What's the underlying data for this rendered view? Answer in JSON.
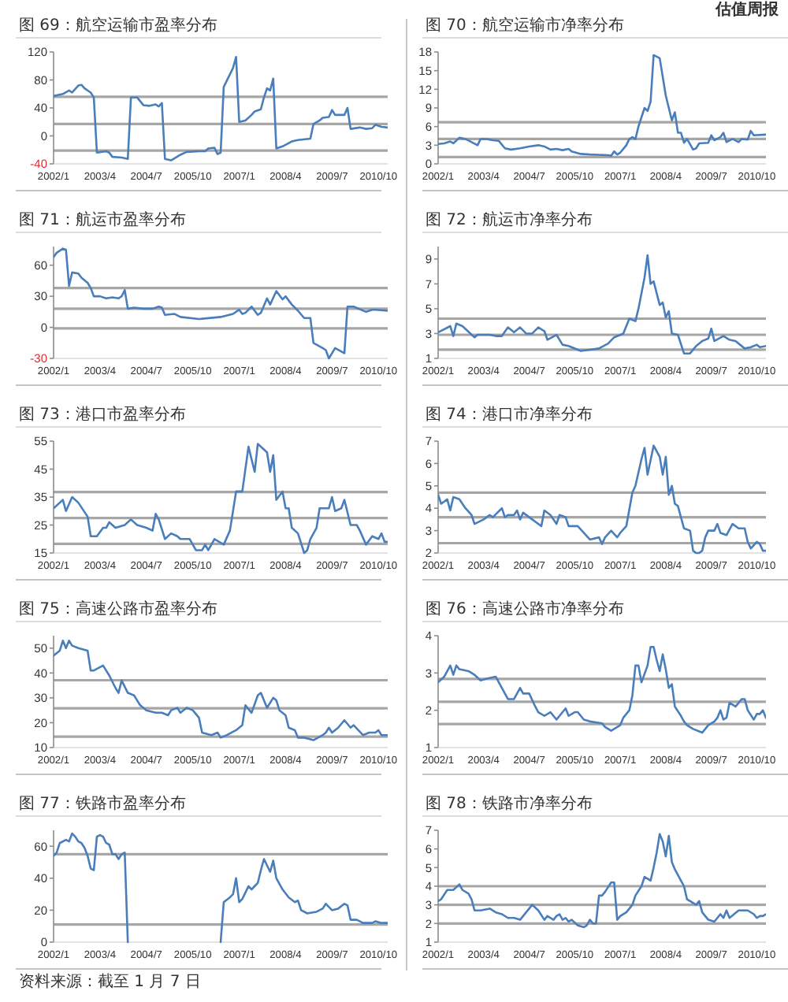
{
  "chart_data": [
    {
      "type": "line",
      "title": "图 69：航空运输市盈率分布",
      "color": "#4a7ebb",
      "xlim": [
        "2002-01",
        "2011-01"
      ],
      "ylim": [
        -40,
        120
      ],
      "yticks": [
        -40,
        0,
        40,
        80,
        120
      ],
      "xticks": [
        {
          "value": "2002-01",
          "label": "2002/1"
        },
        {
          "value": "2003-04",
          "label": "2003/4"
        },
        {
          "value": "2004-07",
          "label": "2004/7"
        },
        {
          "value": "2005-10",
          "label": "2005/10"
        },
        {
          "value": "2007-01",
          "label": "2007/1"
        },
        {
          "value": "2008-04",
          "label": "2008/4"
        },
        {
          "value": "2009-07",
          "label": "2009/7"
        },
        {
          "value": "2010-10",
          "label": "2010/10"
        }
      ],
      "ref_lines": [
        {
          "axis": "y",
          "value": 56,
          "color": "#a6a6a6"
        },
        {
          "axis": "y",
          "value": 17,
          "color": "#a6a6a6"
        },
        {
          "axis": "y",
          "value": -21,
          "color": "#a6a6a6"
        }
      ],
      "x": [
        "2002-01",
        "2002-04",
        "2002-06",
        "2002-07",
        "2002-09",
        "2002-10",
        "2002-11",
        "2003-01",
        "2003-02",
        "2003-03",
        "2003-06",
        "2003-07",
        "2003-08",
        "2003-11",
        "2004-01",
        "2004-02",
        "2004-04",
        "2004-06",
        "2004-08",
        "2004-10",
        "2004-11",
        "2004-12",
        "2005-01",
        "2005-03",
        "2005-06",
        "2005-08",
        "2005-12",
        "2006-02",
        "2006-03",
        "2006-05",
        "2006-06",
        "2006-07",
        "2006-08",
        "2006-10",
        "2006-11",
        "2006-12",
        "2007-01",
        "2007-03",
        "2007-05",
        "2007-06",
        "2007-08",
        "2007-09",
        "2007-10",
        "2007-11",
        "2007-12",
        "2008-01",
        "2008-03",
        "2008-06",
        "2008-08",
        "2008-12",
        "2009-01",
        "2009-03",
        "2009-04",
        "2009-06",
        "2009-07",
        "2009-08",
        "2009-11",
        "2009-12",
        "2010-01",
        "2010-04",
        "2010-06",
        "2010-08",
        "2010-09",
        "2010-11",
        "2011-01"
      ],
      "values": [
        57,
        60,
        65,
        62,
        72,
        73,
        68,
        62,
        55,
        -24,
        -22,
        -24,
        -30,
        -31,
        -33,
        55,
        55,
        44,
        43,
        45,
        42,
        47,
        -33,
        -35,
        -27,
        -23,
        -22,
        -22,
        -18,
        -17,
        -26,
        -24,
        70,
        88,
        97,
        113,
        20,
        22,
        30,
        35,
        38,
        55,
        68,
        65,
        82,
        -18,
        -15,
        -8,
        -6,
        -4,
        17,
        22,
        26,
        27,
        37,
        30,
        30,
        40,
        10,
        12,
        10,
        11,
        16,
        13,
        12
      ]
    },
    {
      "type": "line",
      "title": "图 70：航空运输市净率分布",
      "annotations": [
        "估值周报"
      ],
      "color": "#4a7ebb",
      "xlim": [
        "2002-01",
        "2011-01"
      ],
      "ylim": [
        0,
        18
      ],
      "yticks": [
        0,
        3,
        6,
        9,
        12,
        15,
        18
      ],
      "xticks": [
        {
          "value": "2002-01",
          "label": "2002/1"
        },
        {
          "value": "2003-04",
          "label": "2003/4"
        },
        {
          "value": "2004-07",
          "label": "2004/7"
        },
        {
          "value": "2005-10",
          "label": "2005/10"
        },
        {
          "value": "2007-01",
          "label": "2007/1"
        },
        {
          "value": "2008-04",
          "label": "2008/4"
        },
        {
          "value": "2009-07",
          "label": "2009/7"
        },
        {
          "value": "2010-10",
          "label": "2010/10"
        }
      ],
      "ref_lines": [
        {
          "axis": "y",
          "value": 6.7,
          "color": "#a6a6a6"
        },
        {
          "axis": "y",
          "value": 4.0,
          "color": "#a6a6a6"
        },
        {
          "axis": "y",
          "value": 1.1,
          "color": "#a6a6a6"
        }
      ],
      "x": [
        "2002-01",
        "2002-03",
        "2002-05",
        "2002-06",
        "2002-08",
        "2002-10",
        "2002-12",
        "2003-02",
        "2003-03",
        "2003-05",
        "2003-07",
        "2003-09",
        "2003-11",
        "2004-01",
        "2004-04",
        "2004-07",
        "2004-10",
        "2004-12",
        "2005-02",
        "2005-04",
        "2005-06",
        "2005-08",
        "2005-09",
        "2005-12",
        "2006-03",
        "2006-09",
        "2006-10",
        "2006-11",
        "2006-12",
        "2007-01",
        "2007-03",
        "2007-04",
        "2007-05",
        "2007-06",
        "2007-07",
        "2007-09",
        "2007-10",
        "2007-11",
        "2007-12",
        "2008-02",
        "2008-03",
        "2008-04",
        "2008-06",
        "2008-07",
        "2008-08",
        "2008-09",
        "2008-10",
        "2008-11",
        "2009-01",
        "2009-02",
        "2009-03",
        "2009-06",
        "2009-07",
        "2009-08",
        "2009-10",
        "2009-11",
        "2009-12",
        "2010-02",
        "2010-04",
        "2010-05",
        "2010-07",
        "2010-08",
        "2010-09",
        "2011-01"
      ],
      "values": [
        3.2,
        3.3,
        3.6,
        3.3,
        4.2,
        4.0,
        3.5,
        3.0,
        4.0,
        4.0,
        3.8,
        3.7,
        2.5,
        2.3,
        2.5,
        2.8,
        3.0,
        2.8,
        2.3,
        2.4,
        2.2,
        2.4,
        2.0,
        1.6,
        1.5,
        1.4,
        1.3,
        2.0,
        1.5,
        1.8,
        3.0,
        4.0,
        4.3,
        4.0,
        6,
        9,
        8.5,
        10,
        17.5,
        17,
        14,
        11,
        7,
        8.3,
        5,
        5,
        3.4,
        4,
        2.3,
        2.5,
        3.3,
        3.4,
        4.6,
        3.8,
        4.3,
        5.0,
        3.5,
        4.0,
        3.5,
        4.0,
        3.9,
        5.3,
        4.6,
        4.7
      ]
    },
    {
      "type": "line",
      "title": "图 71：航运市盈率分布",
      "color": "#4a7ebb",
      "xlim": [
        "2002-01",
        "2011-01"
      ],
      "ylim": [
        -30,
        78
      ],
      "yticks": [
        -30,
        0,
        30,
        60
      ],
      "xticks": [
        {
          "value": "2002-01",
          "label": "2002/1"
        },
        {
          "value": "2003-04",
          "label": "2003/4"
        },
        {
          "value": "2004-07",
          "label": "2004/7"
        },
        {
          "value": "2005-10",
          "label": "2005/10"
        },
        {
          "value": "2007-01",
          "label": "2007/1"
        },
        {
          "value": "2008-04",
          "label": "2008/4"
        },
        {
          "value": "2009-07",
          "label": "2009/7"
        },
        {
          "value": "2010-10",
          "label": "2010/10"
        }
      ],
      "ref_lines": [
        {
          "axis": "y",
          "value": 38,
          "color": "#a6a6a6"
        },
        {
          "axis": "y",
          "value": 18,
          "color": "#a6a6a6"
        },
        {
          "axis": "y",
          "value": -1,
          "color": "#a6a6a6"
        }
      ],
      "x": [
        "2002-01",
        "2002-02",
        "2002-04",
        "2002-05",
        "2002-06",
        "2002-07",
        "2002-09",
        "2002-10",
        "2002-12",
        "2003-01",
        "2003-02",
        "2003-04",
        "2003-06",
        "2003-08",
        "2003-10",
        "2003-11",
        "2003-12",
        "2004-01",
        "2004-03",
        "2004-06",
        "2004-09",
        "2004-11",
        "2004-12",
        "2005-01",
        "2005-04",
        "2005-06",
        "2005-12",
        "2006-07",
        "2006-11",
        "2007-01",
        "2007-02",
        "2007-03",
        "2007-05",
        "2007-07",
        "2007-08",
        "2007-10",
        "2007-11",
        "2008-01",
        "2008-03",
        "2008-04",
        "2008-06",
        "2008-08",
        "2008-10",
        "2008-12",
        "2009-01",
        "2009-04",
        "2009-05",
        "2009-06",
        "2009-08",
        "2009-11",
        "2009-12",
        "2010-02",
        "2010-06",
        "2010-08",
        "2010-09",
        "2011-01"
      ],
      "values": [
        68,
        72,
        76,
        75,
        40,
        53,
        52,
        48,
        43,
        38,
        30,
        30,
        28,
        29,
        28,
        30,
        36,
        18,
        19,
        18,
        18,
        20,
        19,
        12,
        13,
        10,
        8,
        10,
        13,
        17,
        13,
        14,
        20,
        12,
        14,
        28,
        22,
        35,
        27,
        30,
        22,
        16,
        9,
        9,
        -15,
        -20,
        -22,
        -30,
        -20,
        -25,
        20,
        20,
        15,
        17,
        17,
        16
      ]
    },
    {
      "type": "line",
      "title": "图 72：航运市净率分布",
      "color": "#4a7ebb",
      "xlim": [
        "2002-01",
        "2011-01"
      ],
      "ylim": [
        1,
        10
      ],
      "yticks": [
        1,
        3,
        5,
        7,
        9
      ],
      "xticks": [
        {
          "value": "2002-01",
          "label": "2002/1"
        },
        {
          "value": "2003-04",
          "label": "2003/4"
        },
        {
          "value": "2004-07",
          "label": "2004/7"
        },
        {
          "value": "2005-10",
          "label": "2005/10"
        },
        {
          "value": "2007-01",
          "label": "2007/1"
        },
        {
          "value": "2008-04",
          "label": "2008/4"
        },
        {
          "value": "2009-07",
          "label": "2009/7"
        },
        {
          "value": "2010-10",
          "label": "2010/10"
        }
      ],
      "ref_lines": [
        {
          "axis": "y",
          "value": 4.2,
          "color": "#a6a6a6"
        },
        {
          "axis": "y",
          "value": 2.9,
          "color": "#a6a6a6"
        },
        {
          "axis": "y",
          "value": 1.7,
          "color": "#a6a6a6"
        }
      ],
      "x": [
        "2002-01",
        "2002-05",
        "2002-06",
        "2002-07",
        "2002-09",
        "2003-01",
        "2003-02",
        "2003-06",
        "2003-08",
        "2003-10",
        "2003-12",
        "2004-02",
        "2004-04",
        "2004-06",
        "2004-08",
        "2004-10",
        "2004-12",
        "2005-01",
        "2005-04",
        "2005-06",
        "2005-08",
        "2005-12",
        "2006-03",
        "2006-06",
        "2006-09",
        "2006-11",
        "2007-02",
        "2007-04",
        "2007-06",
        "2007-07",
        "2007-09",
        "2007-10",
        "2007-11",
        "2007-12",
        "2008-02",
        "2008-03",
        "2008-04",
        "2008-05",
        "2008-06",
        "2008-08",
        "2008-10",
        "2008-12",
        "2009-02",
        "2009-04",
        "2009-06",
        "2009-07",
        "2009-08",
        "2009-11",
        "2010-01",
        "2010-03",
        "2010-06",
        "2010-08",
        "2010-10",
        "2010-11",
        "2011-01"
      ],
      "values": [
        3.1,
        3.6,
        2.8,
        3.8,
        3.6,
        2.7,
        2.9,
        2.9,
        2.8,
        2.8,
        3.5,
        3.1,
        3.5,
        3.0,
        3.0,
        3.5,
        3.2,
        2.5,
        2.9,
        2.1,
        2.0,
        1.6,
        1.7,
        1.8,
        2.2,
        2.7,
        3.0,
        4.2,
        4.0,
        5.0,
        7.5,
        9.3,
        7.0,
        7.2,
        5.3,
        5.5,
        4.3,
        4.8,
        3.0,
        2.9,
        1.4,
        1.4,
        2.0,
        2.4,
        2.6,
        3.4,
        2.4,
        2.8,
        2.5,
        2.4,
        1.8,
        1.9,
        2.1,
        1.9,
        2.0
      ]
    },
    {
      "type": "line",
      "title": "图 73：港口市盈率分布",
      "color": "#4a7ebb",
      "xlim": [
        "2002-01",
        "2011-01"
      ],
      "ylim": [
        15,
        55
      ],
      "yticks": [
        15,
        25,
        35,
        45,
        55
      ],
      "xticks": [
        {
          "value": "2002-01",
          "label": "2002/1"
        },
        {
          "value": "2003-04",
          "label": "2003/4"
        },
        {
          "value": "2004-07",
          "label": "2004/7"
        },
        {
          "value": "2005-10",
          "label": "2005/10"
        },
        {
          "value": "2007-01",
          "label": "2007/1"
        },
        {
          "value": "2008-04",
          "label": "2008/4"
        },
        {
          "value": "2009-07",
          "label": "2009/7"
        },
        {
          "value": "2010-10",
          "label": "2010/10"
        }
      ],
      "ref_lines": [
        {
          "axis": "y",
          "value": 36.8,
          "color": "#a6a6a6"
        },
        {
          "axis": "y",
          "value": 27.5,
          "color": "#a6a6a6"
        },
        {
          "axis": "y",
          "value": 18.3,
          "color": "#a6a6a6"
        }
      ],
      "x": [
        "2002-01",
        "2002-03",
        "2002-04",
        "2002-05",
        "2002-07",
        "2002-09",
        "2002-12",
        "2003-01",
        "2003-03",
        "2003-05",
        "2003-06",
        "2003-07",
        "2003-09",
        "2003-12",
        "2004-02",
        "2004-04",
        "2004-07",
        "2004-09",
        "2004-10",
        "2004-11",
        "2005-01",
        "2005-03",
        "2005-05",
        "2005-06",
        "2005-09",
        "2005-11",
        "2006-01",
        "2006-02",
        "2006-03",
        "2006-05",
        "2006-08",
        "2006-10",
        "2006-12",
        "2007-02",
        "2007-04",
        "2007-06",
        "2007-07",
        "2007-10",
        "2007-11",
        "2007-12",
        "2008-01",
        "2008-03",
        "2008-04",
        "2008-05",
        "2008-06",
        "2008-08",
        "2008-10",
        "2008-11",
        "2008-12",
        "2009-02",
        "2009-03",
        "2009-06",
        "2009-07",
        "2009-08",
        "2009-10",
        "2009-11",
        "2010-01",
        "2010-03",
        "2010-04",
        "2010-06",
        "2010-08",
        "2010-10",
        "2010-11",
        "2010-12",
        "2011-01"
      ],
      "values": [
        31,
        33,
        34,
        30,
        35,
        33,
        28,
        21,
        21,
        24,
        24,
        26,
        24,
        25,
        27,
        25,
        24,
        23,
        29,
        27,
        20,
        22,
        21,
        20,
        20,
        16,
        16,
        18,
        16,
        20,
        18,
        23,
        37,
        37,
        53,
        44,
        54,
        51,
        44,
        50,
        34,
        37,
        31,
        31,
        24,
        22,
        15,
        16,
        20,
        24,
        31,
        31,
        35,
        30,
        31,
        34,
        25,
        25,
        23,
        18,
        21,
        20,
        22,
        19,
        19
      ]
    },
    {
      "type": "line",
      "title": "图 74：港口市净率分布",
      "color": "#4a7ebb",
      "xlim": [
        "2002-01",
        "2011-01"
      ],
      "ylim": [
        2,
        7
      ],
      "yticks": [
        2,
        3,
        4,
        5,
        6,
        7
      ],
      "xticks": [
        {
          "value": "2002-01",
          "label": "2002/1"
        },
        {
          "value": "2003-04",
          "label": "2003/4"
        },
        {
          "value": "2004-07",
          "label": "2004/7"
        },
        {
          "value": "2005-10",
          "label": "2005/10"
        },
        {
          "value": "2007-01",
          "label": "2007/1"
        },
        {
          "value": "2008-04",
          "label": "2008/4"
        },
        {
          "value": "2009-07",
          "label": "2009/7"
        },
        {
          "value": "2010-10",
          "label": "2010/10"
        }
      ],
      "ref_lines": [
        {
          "axis": "y",
          "value": 4.7,
          "color": "#a6a6a6"
        },
        {
          "axis": "y",
          "value": 3.6,
          "color": "#a6a6a6"
        },
        {
          "axis": "y",
          "value": 2.44,
          "color": "#a6a6a6"
        }
      ],
      "x": [
        "2002-01",
        "2002-02",
        "2002-03",
        "2002-04",
        "2002-05",
        "2002-06",
        "2002-08",
        "2002-10",
        "2002-12",
        "2003-01",
        "2003-04",
        "2003-06",
        "2003-07",
        "2003-10",
        "2003-11",
        "2003-12",
        "2004-02",
        "2004-03",
        "2004-04",
        "2004-05",
        "2004-08",
        "2004-09",
        "2004-11",
        "2004-12",
        "2005-02",
        "2005-04",
        "2005-05",
        "2005-07",
        "2005-08",
        "2005-11",
        "2006-01",
        "2006-03",
        "2006-06",
        "2006-07",
        "2006-08",
        "2006-10",
        "2006-12",
        "2007-01",
        "2007-03",
        "2007-05",
        "2007-06",
        "2007-08",
        "2007-09",
        "2007-10",
        "2007-12",
        "2008-02",
        "2008-03",
        "2008-04",
        "2008-05",
        "2008-06",
        "2008-07",
        "2008-08",
        "2008-10",
        "2008-12",
        "2009-01",
        "2009-02",
        "2009-03",
        "2009-04",
        "2009-05",
        "2009-06",
        "2009-08",
        "2009-09",
        "2009-10",
        "2009-12",
        "2010-02",
        "2010-04",
        "2010-06",
        "2010-07",
        "2010-08",
        "2010-10",
        "2010-11",
        "2010-12",
        "2011-01"
      ],
      "values": [
        4.6,
        4.2,
        4.3,
        4.4,
        3.9,
        4.5,
        4.4,
        4.0,
        3.7,
        3.3,
        3.5,
        3.7,
        3.6,
        4.0,
        3.6,
        3.7,
        3.7,
        3.9,
        3.5,
        3.8,
        3.5,
        3.4,
        3.2,
        3.9,
        3.7,
        3.3,
        3.7,
        3.6,
        3.2,
        3.2,
        2.9,
        2.6,
        2.7,
        2.4,
        2.7,
        3.0,
        2.7,
        2.9,
        3.2,
        4.7,
        5.0,
        6.2,
        6.7,
        5.5,
        6.8,
        6.3,
        5.5,
        6.3,
        4.6,
        5.0,
        4.2,
        4.1,
        3.1,
        3.0,
        2.1,
        2.0,
        2.0,
        2.1,
        2.7,
        3.0,
        3.0,
        3.3,
        2.9,
        2.8,
        3.3,
        3.1,
        3.1,
        2.5,
        2.2,
        2.5,
        2.4,
        2.1,
        2.1
      ]
    },
    {
      "type": "line",
      "title": "图 75：高速公路市盈率分布",
      "color": "#4a7ebb",
      "xlim": [
        "2002-01",
        "2011-01"
      ],
      "ylim": [
        10,
        55
      ],
      "yticks": [
        10,
        20,
        30,
        40,
        50
      ],
      "xticks": [
        {
          "value": "2002-01",
          "label": "2002/1"
        },
        {
          "value": "2003-04",
          "label": "2003/4"
        },
        {
          "value": "2004-07",
          "label": "2004/7"
        },
        {
          "value": "2005-10",
          "label": "2005/10"
        },
        {
          "value": "2007-01",
          "label": "2007/1"
        },
        {
          "value": "2008-04",
          "label": "2008/4"
        },
        {
          "value": "2009-07",
          "label": "2009/7"
        },
        {
          "value": "2010-10",
          "label": "2010/10"
        }
      ],
      "ref_lines": [
        {
          "axis": "y",
          "value": 37.1,
          "color": "#a6a6a6"
        },
        {
          "axis": "y",
          "value": 25.8,
          "color": "#a6a6a6"
        },
        {
          "axis": "y",
          "value": 14.4,
          "color": "#a6a6a6"
        }
      ],
      "x": [
        "2002-01",
        "2002-03",
        "2002-04",
        "2002-05",
        "2002-06",
        "2002-07",
        "2002-09",
        "2002-12",
        "2003-01",
        "2003-02",
        "2003-05",
        "2003-07",
        "2003-09",
        "2003-10",
        "2003-11",
        "2004-01",
        "2004-03",
        "2004-05",
        "2004-07",
        "2004-10",
        "2004-12",
        "2005-02",
        "2005-03",
        "2005-05",
        "2005-06",
        "2005-08",
        "2005-10",
        "2005-12",
        "2006-01",
        "2006-04",
        "2006-06",
        "2006-07",
        "2006-09",
        "2006-12",
        "2007-02",
        "2007-03",
        "2007-05",
        "2007-07",
        "2007-08",
        "2007-10",
        "2007-12",
        "2008-01",
        "2008-02",
        "2008-04",
        "2008-05",
        "2008-07",
        "2008-08",
        "2008-10",
        "2009-01",
        "2009-04",
        "2009-05",
        "2009-06",
        "2009-07",
        "2009-09",
        "2009-11",
        "2010-01",
        "2010-02",
        "2010-05",
        "2010-07",
        "2010-09",
        "2010-10",
        "2010-11",
        "2011-01"
      ],
      "values": [
        47,
        49,
        53,
        50,
        53,
        51,
        50,
        49,
        41,
        41,
        43,
        39,
        34,
        32,
        37,
        32,
        31,
        27,
        25,
        24,
        24,
        23,
        25,
        26,
        24,
        26,
        25,
        22,
        16,
        15,
        16,
        14,
        15,
        17,
        19,
        27,
        24,
        31,
        32,
        26,
        30,
        29,
        25,
        23,
        18,
        17,
        14,
        14,
        13,
        15,
        16,
        18,
        16,
        18,
        21,
        18,
        19,
        15,
        16,
        16,
        17,
        15,
        15
      ]
    },
    {
      "type": "line",
      "title": "图 76：高速公路市净率分布",
      "color": "#4a7ebb",
      "xlim": [
        "2002-01",
        "2011-01"
      ],
      "ylim": [
        1,
        4
      ],
      "yticks": [
        1,
        2,
        3,
        4
      ],
      "xticks": [
        {
          "value": "2002-01",
          "label": "2002/1"
        },
        {
          "value": "2003-04",
          "label": "2003/4"
        },
        {
          "value": "2004-07",
          "label": "2004/7"
        },
        {
          "value": "2005-10",
          "label": "2005/10"
        },
        {
          "value": "2007-01",
          "label": "2007/1"
        },
        {
          "value": "2008-04",
          "label": "2008/4"
        },
        {
          "value": "2009-07",
          "label": "2009/7"
        },
        {
          "value": "2010-10",
          "label": "2010/10"
        }
      ],
      "ref_lines": [
        {
          "axis": "y",
          "value": 2.84,
          "color": "#a6a6a6"
        },
        {
          "axis": "y",
          "value": 2.23,
          "color": "#a6a6a6"
        },
        {
          "axis": "y",
          "value": 1.63,
          "color": "#a6a6a6"
        }
      ],
      "x": [
        "2002-01",
        "2002-03",
        "2002-05",
        "2002-06",
        "2002-07",
        "2002-08",
        "2002-11",
        "2003-01",
        "2003-03",
        "2003-05",
        "2003-08",
        "2003-10",
        "2003-12",
        "2004-02",
        "2004-04",
        "2004-05",
        "2004-07",
        "2004-09",
        "2004-10",
        "2004-12",
        "2005-02",
        "2005-04",
        "2005-06",
        "2005-07",
        "2005-08",
        "2005-10",
        "2005-11",
        "2006-01",
        "2006-03",
        "2006-07",
        "2006-08",
        "2006-10",
        "2007-01",
        "2007-02",
        "2007-04",
        "2007-05",
        "2007-06",
        "2007-07",
        "2007-08",
        "2007-10",
        "2007-11",
        "2007-12",
        "2008-01",
        "2008-02",
        "2008-03",
        "2008-04",
        "2008-05",
        "2008-06",
        "2008-07",
        "2008-09",
        "2008-10",
        "2008-11",
        "2009-01",
        "2009-04",
        "2009-06",
        "2009-08",
        "2009-09",
        "2009-10",
        "2009-11",
        "2009-12",
        "2010-01",
        "2010-03",
        "2010-05",
        "2010-06",
        "2010-07",
        "2010-09",
        "2010-10",
        "2010-11",
        "2010-12",
        "2011-01"
      ],
      "values": [
        2.75,
        2.9,
        3.2,
        2.95,
        3.2,
        3.1,
        3.05,
        2.95,
        2.8,
        2.85,
        2.9,
        2.6,
        2.3,
        2.3,
        2.6,
        2.45,
        2.45,
        2.1,
        1.95,
        1.85,
        1.95,
        1.75,
        1.95,
        2.05,
        1.85,
        1.95,
        1.95,
        1.75,
        1.7,
        1.65,
        1.55,
        1.45,
        1.6,
        1.8,
        2.0,
        2.4,
        3.2,
        3.2,
        2.75,
        3.2,
        3.7,
        3.7,
        3.35,
        3.05,
        3.5,
        3.1,
        2.6,
        2.7,
        2.1,
        1.85,
        1.7,
        1.6,
        1.5,
        1.4,
        1.6,
        1.7,
        1.8,
        2.0,
        1.75,
        1.8,
        2.2,
        2.1,
        2.3,
        2.3,
        2.0,
        1.75,
        1.9,
        1.9,
        2.0,
        1.8
      ]
    },
    {
      "type": "line",
      "title": "图 77：铁路市盈率分布",
      "annotations": [
        "资料来源：截至 1 月 7 日"
      ],
      "xlim": [
        "2002-01",
        "2011-01"
      ],
      "ylim": [
        0,
        70
      ],
      "yticks": [
        0,
        20,
        40,
        60
      ],
      "xticks": [
        {
          "value": "2002-01",
          "label": "2002/1"
        },
        {
          "value": "2003-04",
          "label": "2003/4"
        },
        {
          "value": "2004-07",
          "label": "2004/7"
        },
        {
          "value": "2005-10",
          "label": "2005/10"
        },
        {
          "value": "2007-01",
          "label": "2007/1"
        },
        {
          "value": "2008-04",
          "label": "2008/4"
        },
        {
          "value": "2009-07",
          "label": "2009/7"
        },
        {
          "value": "2010-10",
          "label": "2010/10"
        }
      ],
      "ref_lines": [
        {
          "axis": "y",
          "value": 55,
          "color": "#a6a6a6"
        },
        {
          "axis": "y",
          "value": 11,
          "color": "#a6a6a6"
        }
      ],
      "series": [
        {
          "color": "#4a7ebb",
          "x": [
            "2002-01",
            "2002-02",
            "2002-03",
            "2002-05",
            "2002-06",
            "2002-07",
            "2002-08",
            "2002-09",
            "2002-10",
            "2002-11",
            "2002-12",
            "2003-01",
            "2003-02",
            "2003-03",
            "2003-04",
            "2003-05",
            "2003-06",
            "2003-07",
            "2003-08",
            "2003-09",
            "2003-10",
            "2003-11",
            "2003-12",
            "2004-01"
          ],
          "values": [
            54,
            56,
            62,
            64,
            63,
            68,
            66,
            63,
            62,
            59,
            54,
            46,
            45,
            66,
            67,
            66,
            62,
            61,
            55,
            55,
            52,
            55,
            56,
            0
          ]
        },
        {
          "color": "#4a7ebb",
          "x": [
            "2006-07",
            "2006-08",
            "2006-10",
            "2006-11",
            "2006-12",
            "2007-01",
            "2007-02",
            "2007-03",
            "2007-04",
            "2007-05",
            "2007-06",
            "2007-07",
            "2007-08",
            "2007-09",
            "2007-11",
            "2007-12",
            "2008-01",
            "2008-03",
            "2008-05",
            "2008-07",
            "2008-08",
            "2008-09",
            "2008-11",
            "2009-02",
            "2009-04",
            "2009-05",
            "2009-07",
            "2009-09",
            "2009-11",
            "2009-12",
            "2010-01",
            "2010-03",
            "2010-05",
            "2010-08",
            "2010-09",
            "2010-11",
            "2011-01"
          ],
          "values": [
            0,
            25,
            28,
            30,
            40,
            25,
            27,
            31,
            35,
            33,
            35,
            37,
            45,
            52,
            44,
            51,
            40,
            33,
            28,
            25,
            26,
            20,
            18,
            19,
            21,
            24,
            20,
            21,
            24,
            23,
            14,
            14,
            12,
            12,
            13,
            12,
            12
          ]
        }
      ]
    },
    {
      "type": "line",
      "title": "图 78：铁路市净率分布",
      "color": "#4a7ebb",
      "xlim": [
        "2002-01",
        "2011-01"
      ],
      "ylim": [
        1,
        7
      ],
      "yticks": [
        1,
        2,
        3,
        4,
        5,
        6,
        7
      ],
      "xticks": [
        {
          "value": "2002-01",
          "label": "2002/1"
        },
        {
          "value": "2003-04",
          "label": "2003/4"
        },
        {
          "value": "2004-07",
          "label": "2004/7"
        },
        {
          "value": "2005-10",
          "label": "2005/10"
        },
        {
          "value": "2007-01",
          "label": "2007/1"
        },
        {
          "value": "2008-04",
          "label": "2008/4"
        },
        {
          "value": "2009-07",
          "label": "2009/7"
        },
        {
          "value": "2010-10",
          "label": "2010/10"
        }
      ],
      "ref_lines": [
        {
          "axis": "y",
          "value": 4.0,
          "color": "#a6a6a6"
        },
        {
          "axis": "y",
          "value": 3.0,
          "color": "#a6a6a6"
        },
        {
          "axis": "y",
          "value": 2.0,
          "color": "#a6a6a6"
        }
      ],
      "x": [
        "2002-01",
        "2002-02",
        "2002-04",
        "2002-06",
        "2002-08",
        "2002-09",
        "2002-11",
        "2002-12",
        "2003-01",
        "2003-03",
        "2003-06",
        "2003-08",
        "2003-10",
        "2003-12",
        "2004-02",
        "2004-04",
        "2004-05",
        "2004-07",
        "2004-08",
        "2004-10",
        "2004-12",
        "2005-01",
        "2005-03",
        "2005-04",
        "2005-05",
        "2005-06",
        "2005-07",
        "2005-08",
        "2005-09",
        "2005-11",
        "2006-01",
        "2006-02",
        "2006-03",
        "2006-04",
        "2006-05",
        "2006-06",
        "2006-07",
        "2006-08",
        "2006-10",
        "2006-11",
        "2006-12",
        "2007-01",
        "2007-03",
        "2007-05",
        "2007-06",
        "2007-08",
        "2007-09",
        "2007-11",
        "2007-12",
        "2008-01",
        "2008-02",
        "2008-03",
        "2008-04",
        "2008-05",
        "2008-06",
        "2008-07",
        "2008-09",
        "2008-10",
        "2008-11",
        "2008-12",
        "2009-02",
        "2009-03",
        "2009-04",
        "2009-05",
        "2009-06",
        "2009-08",
        "2009-09",
        "2009-10",
        "2009-11",
        "2009-12",
        "2010-01",
        "2010-04",
        "2010-07",
        "2010-09",
        "2010-10",
        "2010-11",
        "2010-12",
        "2011-01"
      ],
      "values": [
        3.2,
        3.3,
        3.8,
        3.8,
        4.1,
        3.8,
        3.6,
        3.3,
        2.7,
        2.7,
        2.8,
        2.6,
        2.5,
        2.3,
        2.3,
        2.2,
        2.4,
        2.8,
        3.0,
        2.7,
        2.2,
        2.4,
        2.2,
        2.4,
        2.5,
        2.2,
        2.3,
        2.1,
        2.2,
        1.9,
        1.8,
        1.9,
        2.2,
        2.0,
        2.0,
        3.5,
        3.5,
        3.7,
        4.2,
        4.2,
        2.2,
        2.4,
        2.6,
        3.0,
        3.5,
        4.0,
        4.5,
        4.3,
        5.0,
        5.8,
        6.8,
        6.4,
        5.6,
        6.7,
        5.3,
        4.9,
        4.3,
        4.0,
        3.3,
        3.2,
        3.0,
        3.2,
        2.6,
        2.4,
        2.2,
        2.1,
        2.3,
        2.5,
        2.3,
        2.7,
        2.3,
        2.7,
        2.7,
        2.5,
        2.3,
        2.4,
        2.4,
        2.5
      ]
    }
  ]
}
